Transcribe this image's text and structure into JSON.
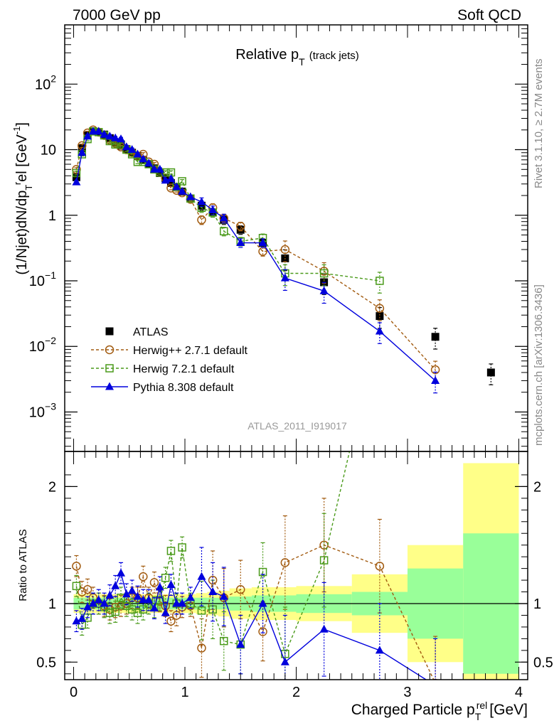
{
  "header": {
    "left": "7000 GeV pp",
    "right": "Soft QCD"
  },
  "side_text": {
    "top": "Rivet 3.1.10, ≥ 2.7M events",
    "bottom": "mcplots.cern.ch [arXiv:1306.3436]"
  },
  "watermark": "ATLAS_2011_I919017",
  "chart_data": [
    {
      "type": "scatter",
      "title": "Relative p_T (track jets)",
      "title_main": "Relative p",
      "title_sub": "T",
      "title_extra": "(track jets)",
      "ylabel": "(1/Njet)dN/dp_T^rel [GeV^-1]",
      "yscale": "log",
      "ylim": [
        0.00025,
        800
      ],
      "xlim": [
        -0.08,
        4.08
      ],
      "y_ticks": [
        {
          "v": 0.001,
          "m": "10",
          "e": "−3"
        },
        {
          "v": 0.01,
          "m": "10",
          "e": "−2"
        },
        {
          "v": 0.1,
          "m": "10",
          "e": "−1"
        },
        {
          "v": 1,
          "m": "1",
          "e": ""
        },
        {
          "v": 10,
          "m": "10",
          "e": ""
        },
        {
          "v": 100,
          "m": "10",
          "e": "2"
        }
      ],
      "legend_position": "bottom-left",
      "series": [
        {
          "name": "ATLAS",
          "color": "#000000",
          "marker": "filled-square",
          "x": [
            0.025,
            0.075,
            0.125,
            0.175,
            0.225,
            0.275,
            0.325,
            0.375,
            0.425,
            0.475,
            0.525,
            0.575,
            0.625,
            0.675,
            0.725,
            0.775,
            0.825,
            0.875,
            0.925,
            0.975,
            1.05,
            1.15,
            1.25,
            1.35,
            1.5,
            1.7,
            1.9,
            2.25,
            2.75,
            3.25,
            3.75
          ],
          "y": [
            3.8,
            10.5,
            16.5,
            19,
            18.5,
            17,
            15,
            13,
            11.5,
            10.2,
            9,
            8,
            7,
            6,
            5.2,
            4.4,
            3.7,
            3.1,
            2.7,
            2.3,
            1.8,
            1.4,
            1.1,
            0.85,
            0.6,
            0.38,
            0.22,
            0.095,
            0.029,
            0.014,
            0.004
          ]
        },
        {
          "name": "Herwig++ 2.7.1 default",
          "color": "#a25b10",
          "marker": "open-circle",
          "dashed": true,
          "x": [
            0.025,
            0.075,
            0.125,
            0.175,
            0.225,
            0.275,
            0.325,
            0.375,
            0.425,
            0.475,
            0.525,
            0.575,
            0.625,
            0.675,
            0.725,
            0.775,
            0.825,
            0.875,
            0.925,
            0.975,
            1.05,
            1.15,
            1.25,
            1.35,
            1.5,
            1.7,
            1.9,
            2.25,
            2.75,
            3.25
          ],
          "y": [
            5.0,
            11.5,
            18,
            20,
            18.5,
            16.5,
            14,
            12.5,
            11,
            10,
            9,
            8,
            8.5,
            6.5,
            6,
            4.5,
            3.7,
            2.6,
            2.4,
            2.2,
            1.75,
            0.85,
            1.3,
            0.9,
            0.68,
            0.28,
            0.3,
            0.14,
            0.038,
            0.0044
          ]
        },
        {
          "name": "Herwig 7.2.1 default",
          "color": "#4a9a1a",
          "marker": "open-square",
          "dashed": true,
          "x": [
            0.025,
            0.075,
            0.125,
            0.175,
            0.225,
            0.275,
            0.325,
            0.375,
            0.425,
            0.475,
            0.525,
            0.575,
            0.625,
            0.675,
            0.725,
            0.775,
            0.825,
            0.875,
            0.925,
            0.975,
            1.05,
            1.15,
            1.25,
            1.35,
            1.5,
            1.7,
            1.9,
            2.25,
            2.75
          ],
          "y": [
            4.4,
            8.5,
            14.5,
            19,
            18.5,
            16.5,
            13.5,
            12,
            12,
            10,
            8.5,
            6.5,
            6.5,
            6,
            5,
            4.5,
            4.5,
            4.5,
            2.7,
            3.3,
            1.8,
            1.3,
            1.1,
            0.57,
            0.4,
            0.45,
            0.13,
            0.13,
            0.1
          ]
        },
        {
          "name": "Pythia 8.308 default",
          "color": "#0000dd",
          "marker": "filled-triangle",
          "x": [
            0.025,
            0.075,
            0.125,
            0.175,
            0.225,
            0.275,
            0.325,
            0.375,
            0.425,
            0.475,
            0.525,
            0.575,
            0.625,
            0.675,
            0.725,
            0.775,
            0.825,
            0.875,
            0.925,
            0.975,
            1.05,
            1.15,
            1.25,
            1.35,
            1.5,
            1.7,
            1.9,
            2.25,
            2.75,
            3.25
          ],
          "y": [
            3.2,
            9,
            16,
            19,
            19,
            17,
            16,
            15,
            14.5,
            11,
            10,
            8.5,
            7.2,
            6.2,
            5,
            5,
            3.4,
            3.6,
            2.7,
            2.3,
            1.9,
            1.6,
            1.2,
            0.9,
            0.38,
            0.38,
            0.11,
            0.07,
            0.017,
            0.003
          ]
        }
      ]
    },
    {
      "type": "line",
      "ylabel": "Ratio to ATLAS",
      "xlabel": "Charged Particle p_T^rel [GeV]",
      "xlabel_main": "Charged Particle p",
      "xlabel_sub": "T",
      "xlabel_sup": "rel",
      "xlabel_unit": "[GeV]",
      "xlim": [
        -0.08,
        4.08
      ],
      "ylim": [
        0.35,
        2.3
      ],
      "x_ticks": [
        0,
        1,
        2,
        3,
        4
      ],
      "y_ticks": [
        0.5,
        1,
        2
      ],
      "reference_line": 1,
      "bands": {
        "edges": [
          0,
          0.05,
          0.1,
          0.15,
          0.2,
          0.25,
          0.3,
          0.35,
          0.4,
          0.45,
          0.5,
          0.55,
          0.6,
          0.65,
          0.7,
          0.75,
          0.8,
          0.85,
          0.9,
          0.95,
          1.0,
          1.1,
          1.2,
          1.3,
          1.4,
          1.6,
          1.8,
          2.0,
          2.5,
          3.0,
          3.5,
          4.0
        ],
        "inner": [
          0.05,
          0.05,
          0.05,
          0.05,
          0.05,
          0.05,
          0.05,
          0.05,
          0.05,
          0.05,
          0.05,
          0.05,
          0.05,
          0.05,
          0.05,
          0.05,
          0.05,
          0.05,
          0.05,
          0.05,
          0.05,
          0.05,
          0.05,
          0.05,
          0.06,
          0.07,
          0.07,
          0.08,
          0.1,
          0.3,
          0.6
        ],
        "outer": [
          0.08,
          0.08,
          0.08,
          0.08,
          0.08,
          0.08,
          0.08,
          0.08,
          0.08,
          0.08,
          0.08,
          0.08,
          0.08,
          0.08,
          0.08,
          0.08,
          0.08,
          0.08,
          0.08,
          0.08,
          0.08,
          0.09,
          0.1,
          0.11,
          0.13,
          0.14,
          0.14,
          0.15,
          0.25,
          0.5,
          1.2
        ],
        "inner_color": "#99ff99",
        "outer_color": "#ffff88"
      },
      "series": [
        {
          "name": "Herwig++ 2.7.1 default",
          "color": "#a25b10",
          "marker": "open-circle",
          "dashed": true,
          "x": [
            0.025,
            0.075,
            0.125,
            0.175,
            0.225,
            0.275,
            0.325,
            0.375,
            0.425,
            0.475,
            0.525,
            0.575,
            0.625,
            0.675,
            0.725,
            0.775,
            0.825,
            0.875,
            0.925,
            0.975,
            1.05,
            1.15,
            1.25,
            1.35,
            1.5,
            1.7,
            1.9,
            2.25,
            2.75,
            3.25
          ],
          "y": [
            1.32,
            1.1,
            1.12,
            1.05,
            1.0,
            0.98,
            0.95,
            0.97,
            0.98,
            1.0,
            1.05,
            1.05,
            1.23,
            1.05,
            1.18,
            1.02,
            0.98,
            0.85,
            0.9,
            0.97,
            0.98,
            0.62,
            1.2,
            1.05,
            1.12,
            0.76,
            1.35,
            1.5,
            1.32,
            0.32
          ]
        },
        {
          "name": "Herwig 7.2.1 default",
          "color": "#4a9a1a",
          "marker": "open-square",
          "dashed": true,
          "x": [
            0.025,
            0.075,
            0.125,
            0.175,
            0.225,
            0.275,
            0.325,
            0.375,
            0.425,
            0.475,
            0.525,
            0.575,
            0.625,
            0.675,
            0.725,
            0.775,
            0.825,
            0.875,
            0.925,
            0.975,
            1.05,
            1.15,
            1.25,
            1.35,
            1.5,
            1.7,
            1.9,
            2.25,
            2.75
          ],
          "y": [
            1.15,
            0.82,
            0.88,
            1.0,
            1.0,
            0.97,
            0.92,
            0.93,
            1.05,
            0.98,
            0.95,
            0.92,
            0.95,
            1.0,
            0.97,
            1.03,
            1.22,
            1.45,
            1.0,
            1.48,
            1.0,
            0.94,
            0.95,
            0.68,
            0.65,
            1.27,
            0.57,
            1.37,
            3.4
          ]
        },
        {
          "name": "Pythia 8.308 default",
          "color": "#0000dd",
          "marker": "filled-triangle",
          "x": [
            0.025,
            0.075,
            0.125,
            0.175,
            0.225,
            0.275,
            0.325,
            0.375,
            0.425,
            0.475,
            0.525,
            0.575,
            0.625,
            0.675,
            0.725,
            0.775,
            0.825,
            0.875,
            0.925,
            0.975,
            1.05,
            1.15,
            1.25,
            1.35,
            1.5,
            1.7,
            1.9,
            2.25,
            2.75,
            3.25
          ],
          "y": [
            0.85,
            0.87,
            0.97,
            1.0,
            1.03,
            1.0,
            1.07,
            1.15,
            1.26,
            1.08,
            1.11,
            1.06,
            1.03,
            1.03,
            0.96,
            1.14,
            0.92,
            1.16,
            1.0,
            1.0,
            1.05,
            1.23,
            1.1,
            1.06,
            0.65,
            1.0,
            0.5,
            0.78,
            0.6,
            0.3
          ]
        }
      ]
    }
  ]
}
